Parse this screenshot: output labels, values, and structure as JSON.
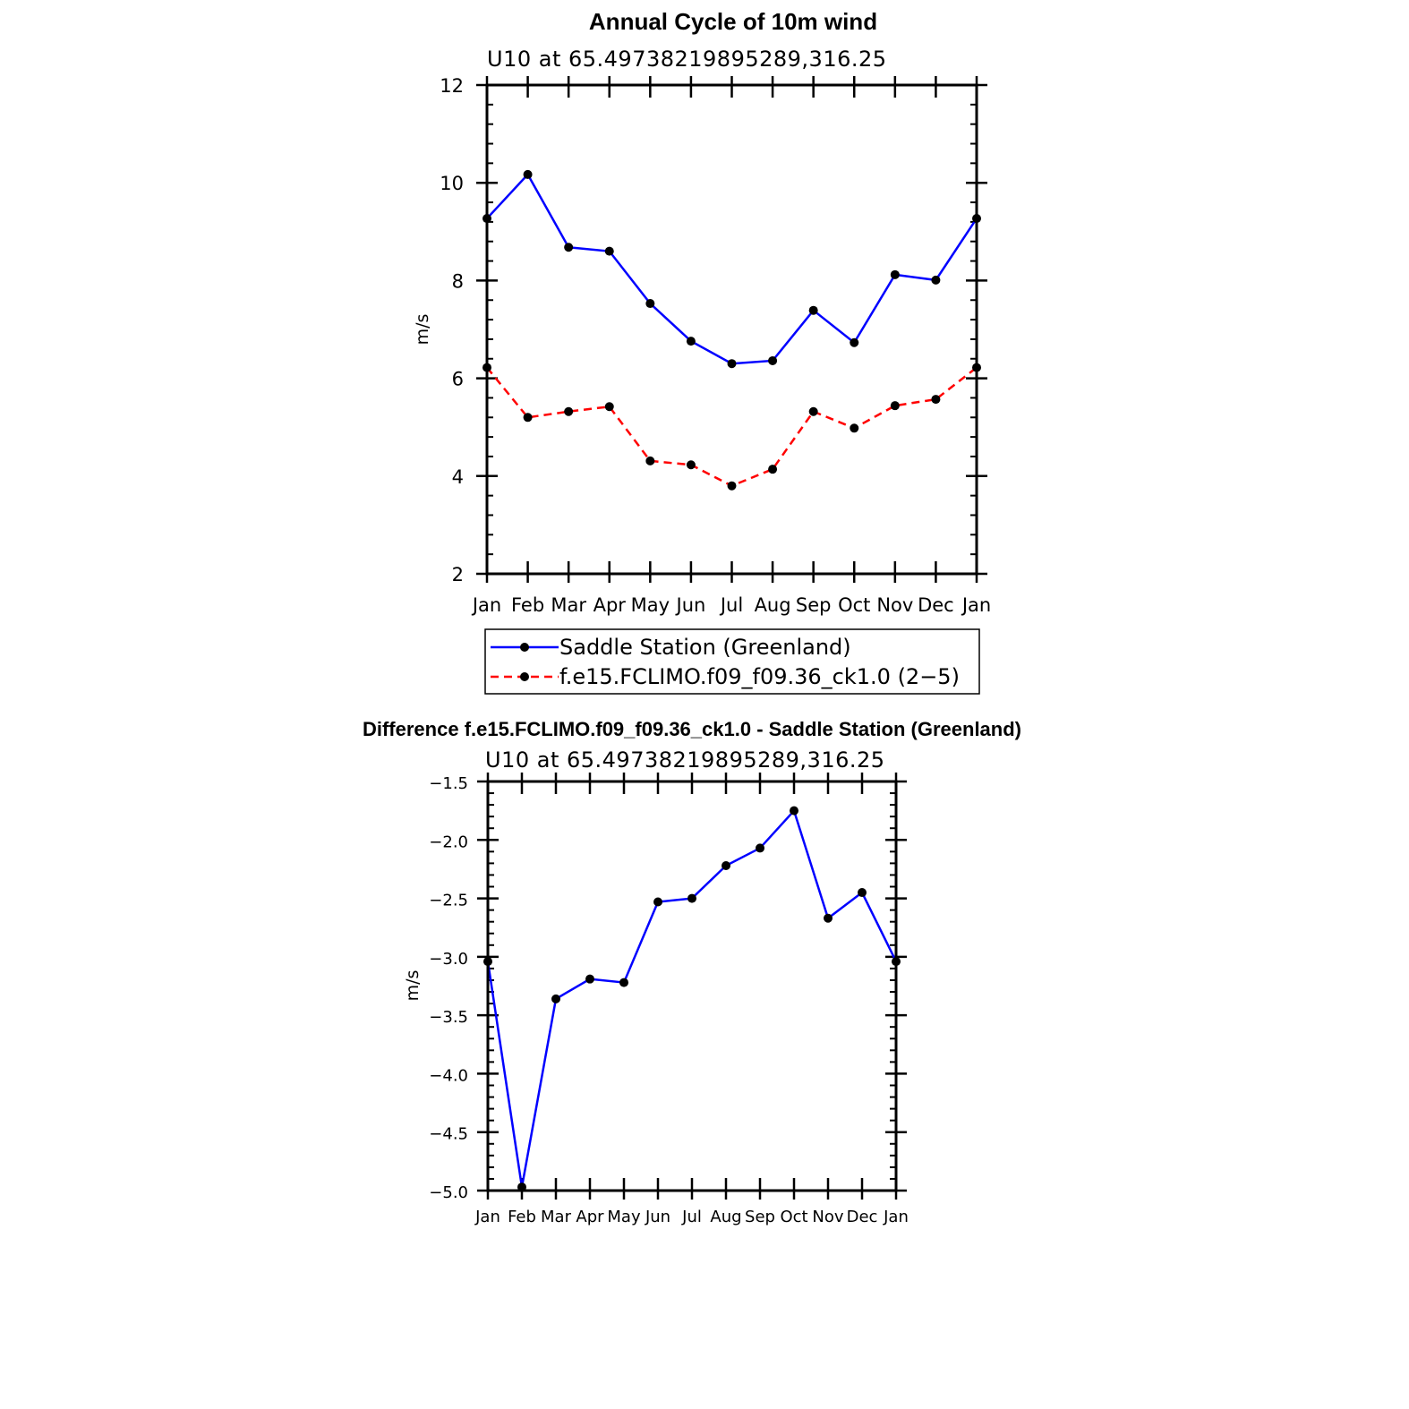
{
  "chart_data": [
    {
      "type": "line",
      "title": "Annual Cycle of 10m wind",
      "subtitle": "U10  at  65.49738219895289,316.25",
      "xlabel": "",
      "ylabel": "m/s",
      "categories": [
        "Jan",
        "Feb",
        "Mar",
        "Apr",
        "May",
        "Jun",
        "Jul",
        "Aug",
        "Sep",
        "Oct",
        "Nov",
        "Dec",
        "Jan"
      ],
      "yticks": [
        "2",
        "4",
        "6",
        "8",
        "10",
        "12"
      ],
      "ylim": [
        2,
        12
      ],
      "series": [
        {
          "name": "Saddle Station (Greenland)",
          "color": "#0000ff",
          "dash": "solid",
          "values": [
            9.27,
            10.17,
            8.68,
            8.6,
            7.53,
            6.76,
            6.3,
            6.36,
            7.39,
            6.73,
            8.12,
            8.01,
            9.27
          ]
        },
        {
          "name": "f.e15.FCLIMO.f09_f09.36_ck1.0 (2−5)",
          "color": "#ff0000",
          "dash": "dashed",
          "values": [
            6.22,
            5.2,
            5.32,
            5.42,
            4.31,
            4.23,
            3.8,
            4.14,
            5.32,
            4.98,
            5.44,
            5.57,
            6.22
          ]
        }
      ]
    },
    {
      "type": "line",
      "title": "Difference f.e15.FCLIMO.f09_f09.36_ck1.0 - Saddle Station (Greenland)",
      "subtitle": "U10  at  65.49738219895289,316.25",
      "xlabel": "",
      "ylabel": "m/s",
      "categories": [
        "Jan",
        "Feb",
        "Mar",
        "Apr",
        "May",
        "Jun",
        "Jul",
        "Aug",
        "Sep",
        "Oct",
        "Nov",
        "Dec",
        "Jan"
      ],
      "yticks": [
        "−1.5",
        "−2.0",
        "−2.5",
        "−3.0",
        "−3.5",
        "−4.0",
        "−4.5",
        "−5.0"
      ],
      "ylim": [
        -5.0,
        -1.5
      ],
      "series": [
        {
          "name": "Difference",
          "color": "#0000ff",
          "dash": "solid",
          "values": [
            -3.04,
            -4.97,
            -3.36,
            -3.19,
            -3.22,
            -2.53,
            -2.5,
            -2.22,
            -2.07,
            -1.75,
            -2.67,
            -2.45,
            -3.04
          ]
        }
      ]
    }
  ]
}
